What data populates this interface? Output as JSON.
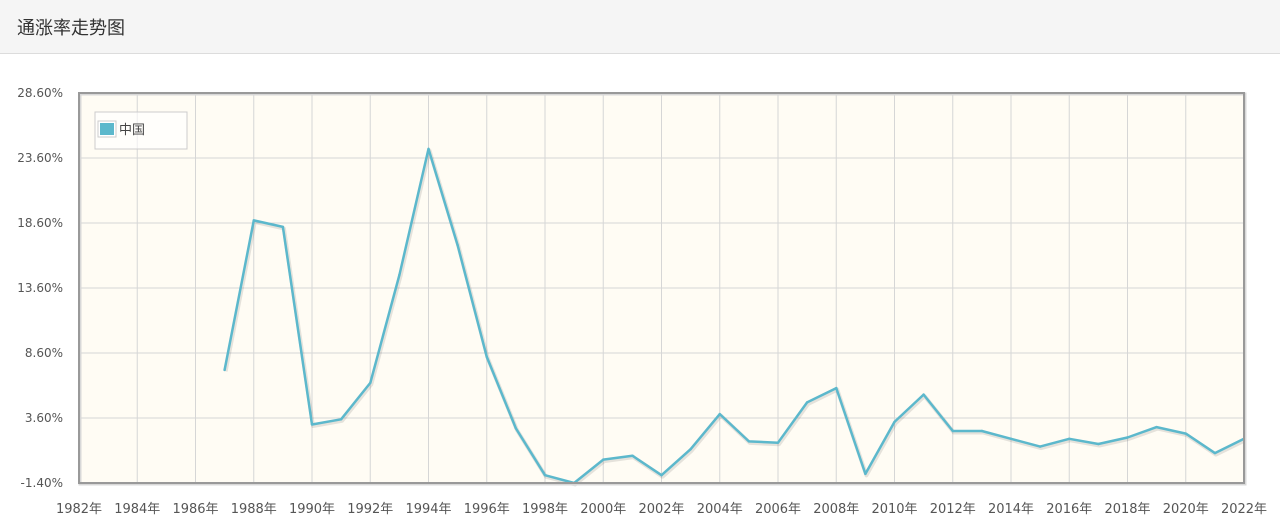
{
  "header": {
    "title": "通涨率走势图"
  },
  "chart_data": {
    "type": "line",
    "title": "",
    "xlabel": "",
    "ylabel": "",
    "x": [
      1987,
      1988,
      1989,
      1990,
      1991,
      1992,
      1993,
      1994,
      1995,
      1996,
      1997,
      1998,
      1999,
      2000,
      2001,
      2002,
      2003,
      2004,
      2005,
      2006,
      2007,
      2008,
      2009,
      2010,
      2011,
      2012,
      2013,
      2014,
      2015,
      2016,
      2017,
      2018,
      2019,
      2020,
      2021,
      2022
    ],
    "series": [
      {
        "name": "中国",
        "color": "#5cb8cc",
        "values": [
          7.3,
          18.8,
          18.3,
          3.1,
          3.5,
          6.3,
          14.6,
          24.3,
          16.9,
          8.3,
          2.8,
          -0.8,
          -1.4,
          0.4,
          0.7,
          -0.8,
          1.2,
          3.9,
          1.8,
          1.7,
          4.8,
          5.9,
          -0.7,
          3.3,
          5.4,
          2.6,
          2.6,
          2.0,
          1.4,
          2.0,
          1.6,
          2.1,
          2.9,
          2.4,
          0.9,
          2.0
        ]
      }
    ],
    "xlim": [
      1982,
      2022
    ],
    "ylim": [
      -1.4,
      28.6
    ],
    "x_ticks": [
      1982,
      1984,
      1986,
      1988,
      1990,
      1992,
      1994,
      1996,
      1998,
      2000,
      2002,
      2004,
      2006,
      2008,
      2010,
      2012,
      2014,
      2016,
      2018,
      2020,
      2022
    ],
    "x_tick_labels": [
      "1982年",
      "1984年",
      "1986年",
      "1988年",
      "1990年",
      "1992年",
      "1994年",
      "1996年",
      "1998年",
      "2000年",
      "2002年",
      "2004年",
      "2006年",
      "2008年",
      "2010年",
      "2012年",
      "2014年",
      "2016年",
      "2018年",
      "2020年",
      "2022年"
    ],
    "y_ticks": [
      -1.4,
      3.6,
      8.6,
      13.6,
      18.6,
      23.6,
      28.6
    ],
    "y_tick_labels": [
      "-1.40%",
      "3.60%",
      "8.60%",
      "13.60%",
      "18.60%",
      "23.60%",
      "28.60%"
    ],
    "grid": true,
    "legend_position": "top-left",
    "plot_background": "#fffcf4"
  }
}
